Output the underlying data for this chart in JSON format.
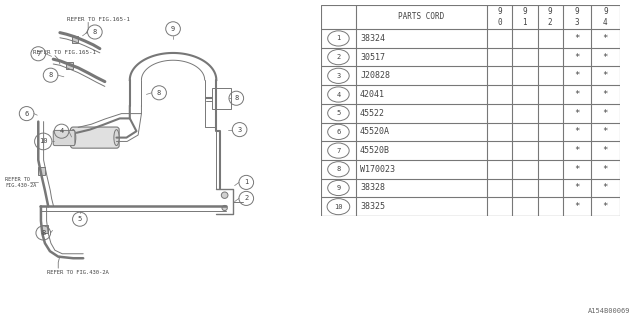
{
  "bg_color": "#ffffff",
  "line_color": "#777777",
  "text_color": "#444444",
  "table": {
    "rows": [
      [
        "1",
        "38324",
        "*",
        "*"
      ],
      [
        "2",
        "30517",
        "*",
        "*"
      ],
      [
        "3",
        "J20828",
        "*",
        "*"
      ],
      [
        "4",
        "42041",
        "*",
        "*"
      ],
      [
        "5",
        "45522",
        "*",
        "*"
      ],
      [
        "6",
        "45520A",
        "*",
        "*"
      ],
      [
        "7",
        "45520B",
        "*",
        "*"
      ],
      [
        "8",
        "W170023",
        "*",
        "*"
      ],
      [
        "9",
        "38328",
        "*",
        "*"
      ],
      [
        "10",
        "38325",
        "*",
        "*"
      ]
    ],
    "header": [
      "PARTS CORD",
      "9\n0",
      "9\n1",
      "9\n2",
      "9\n3",
      "9\n4"
    ]
  },
  "watermark": "A154B00069"
}
